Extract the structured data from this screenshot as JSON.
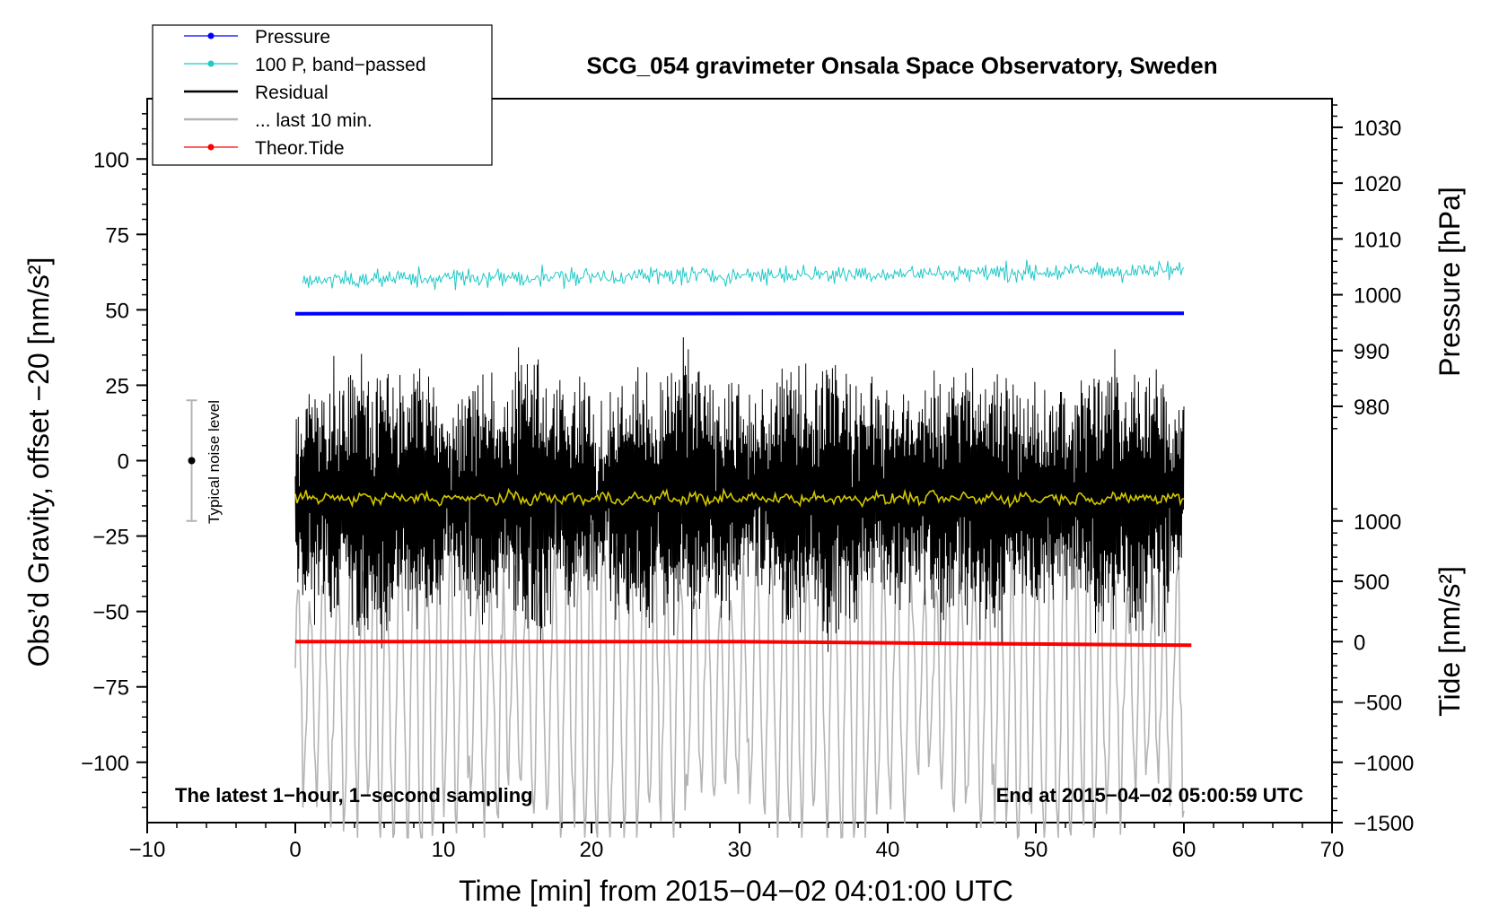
{
  "chart_data": {
    "type": "line",
    "title": "SCG_054 gravimeter Onsala Space Observatory, Sweden",
    "xlabel": "Time [min] from 2015−04−02 04:01:00 UTC",
    "ylabel_left": "Obs’d Gravity, offset −20 [nm/s²]",
    "ylabel_pressure": "Pressure [hPa]",
    "ylabel_tide": "Tide [nm/s²]",
    "xlim": [
      -10,
      70
    ],
    "ylim_left": [
      -120,
      120
    ],
    "x_ticks": [
      -10,
      0,
      10,
      20,
      30,
      40,
      50,
      60,
      70
    ],
    "x_tick_labels": [
      "−10",
      "0",
      "10",
      "20",
      "30",
      "40",
      "50",
      "60",
      "70"
    ],
    "y_left_ticks": [
      100,
      75,
      50,
      25,
      0,
      -25,
      -50,
      -75,
      -100
    ],
    "y_left_tick_labels": [
      "100",
      "75",
      "50",
      "25",
      "0",
      "−25",
      "−50",
      "−75",
      "−100"
    ],
    "pressure_axis": {
      "ticks": [
        1030,
        1020,
        1010,
        1000,
        990,
        980
      ],
      "tick_labels": [
        "1030",
        "1020",
        "1010",
        "1000",
        "990",
        "980"
      ],
      "left_value_at_1000": 55,
      "left_units_per_hPa": 1.85
    },
    "tide_axis": {
      "ticks": [
        1000,
        500,
        0,
        -500,
        -1000,
        -1500
      ],
      "tick_labels": [
        "1000",
        "500",
        "0",
        "−500",
        "−1000",
        "−1500"
      ],
      "left_value_at_0": -60,
      "left_units_per_1000": 40
    },
    "series": [
      {
        "name": "Pressure",
        "legend_label": "Pressure",
        "color": "#0000ff",
        "style": "line-marker",
        "approx_value_hPa": 996.6,
        "x_range": [
          0,
          60
        ]
      },
      {
        "name": "100 P, band-passed",
        "legend_label": "100 P, band−passed",
        "color": "#20c8c8",
        "style": "line-marker",
        "approx_left_value": 60,
        "noise_amplitude": 2,
        "x_range": [
          0.5,
          60
        ]
      },
      {
        "name": "Residual",
        "legend_label": "Residual",
        "color": "#000000",
        "style": "line",
        "approx_left_value": -12,
        "noise_amplitude": 40,
        "x_range": [
          0,
          60
        ]
      },
      {
        "name": "... last 10 min.",
        "legend_label": "... last 10 min.",
        "color": "#b4b4b4",
        "style": "line",
        "approx_left_value": -75,
        "noise_amplitude": 40,
        "x_range": [
          0,
          60
        ]
      },
      {
        "name": "Theor.Tide",
        "legend_label": "Theor.Tide",
        "color": "#ff0000",
        "style": "line-marker",
        "values_nm_s2": [
          [
            0,
            0
          ],
          [
            30,
            0
          ],
          [
            50,
            -20
          ],
          [
            60.5,
            -30
          ]
        ]
      },
      {
        "name": "Residual smoothed",
        "color": "#d2c800",
        "style": "line",
        "approx_left_value": -12.5,
        "noise_amplitude": 1.5,
        "x_range": [
          0,
          60
        ]
      }
    ],
    "noise_marker": {
      "label": "Typical noise level",
      "x": -7,
      "center": 0,
      "range": [
        -20,
        20
      ]
    },
    "annotations": {
      "bottom_left": "The latest 1−hour, 1−second sampling",
      "bottom_right": "End at 2015−04−02 05:00:59 UTC"
    },
    "legend_position": "top-left"
  }
}
